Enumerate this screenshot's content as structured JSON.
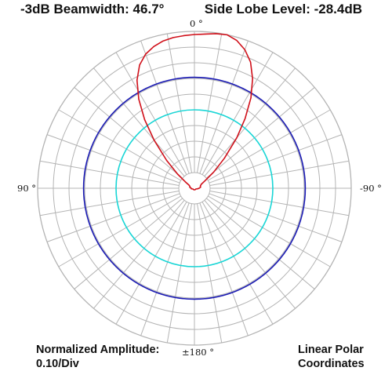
{
  "header": {
    "beamwidth": "-3dB Beamwidth: 46.7°",
    "sidelobe": "Side Lobe Level: -28.4dB"
  },
  "footer": {
    "amplitude_line1": "Normalized Amplitude:",
    "amplitude_line2": "0.10/Div",
    "coords_line1": "Linear Polar",
    "coords_line2": "Coordinates"
  },
  "angle_labels": {
    "top": "0 °",
    "left": "90 °",
    "right": "-90 °",
    "bottom": "±180 °"
  },
  "colors": {
    "grid": "#b4b4b4",
    "pattern": "#d0101a",
    "ref_outer": "#1a1ab4",
    "ref_inner": "#19d6d6"
  },
  "chart_data": {
    "type": "polar-line",
    "coordinates": "linear polar",
    "r_range": [
      0,
      1
    ],
    "r_step": 0.1,
    "theta_step_deg": 10,
    "theta_direction": "0° at top, +90° on left, -90° on right, ±180° at bottom",
    "reference_circles": [
      {
        "r": 0.707,
        "color": "#1a1ab4"
      },
      {
        "r": 0.5,
        "color": "#19d6d6"
      }
    ],
    "series": [
      {
        "color": "#d0101a",
        "theta_deg": [
          0,
          4,
          8,
          12,
          16,
          20,
          24,
          28,
          32,
          36,
          40,
          45,
          50,
          55,
          60,
          70,
          80,
          90,
          100,
          120,
          140,
          160,
          180,
          -160,
          -140,
          -120,
          -100,
          -90,
          -80,
          -70,
          -60,
          -55,
          -50,
          -45,
          -40,
          -36,
          -32,
          -28,
          -24,
          -20,
          -16,
          -12,
          -8,
          -4
        ],
        "r": [
          0.98,
          0.975,
          0.97,
          0.96,
          0.94,
          0.91,
          0.86,
          0.78,
          0.67,
          0.54,
          0.4,
          0.25,
          0.14,
          0.07,
          0.04,
          0.03,
          0.03,
          0.02,
          0.02,
          0.01,
          0.01,
          0.01,
          0.01,
          0.01,
          0.01,
          0.01,
          0.02,
          0.03,
          0.04,
          0.04,
          0.05,
          0.08,
          0.16,
          0.27,
          0.42,
          0.55,
          0.68,
          0.79,
          0.88,
          0.94,
          0.98,
          1.0,
          0.995,
          0.985
        ]
      }
    ]
  }
}
